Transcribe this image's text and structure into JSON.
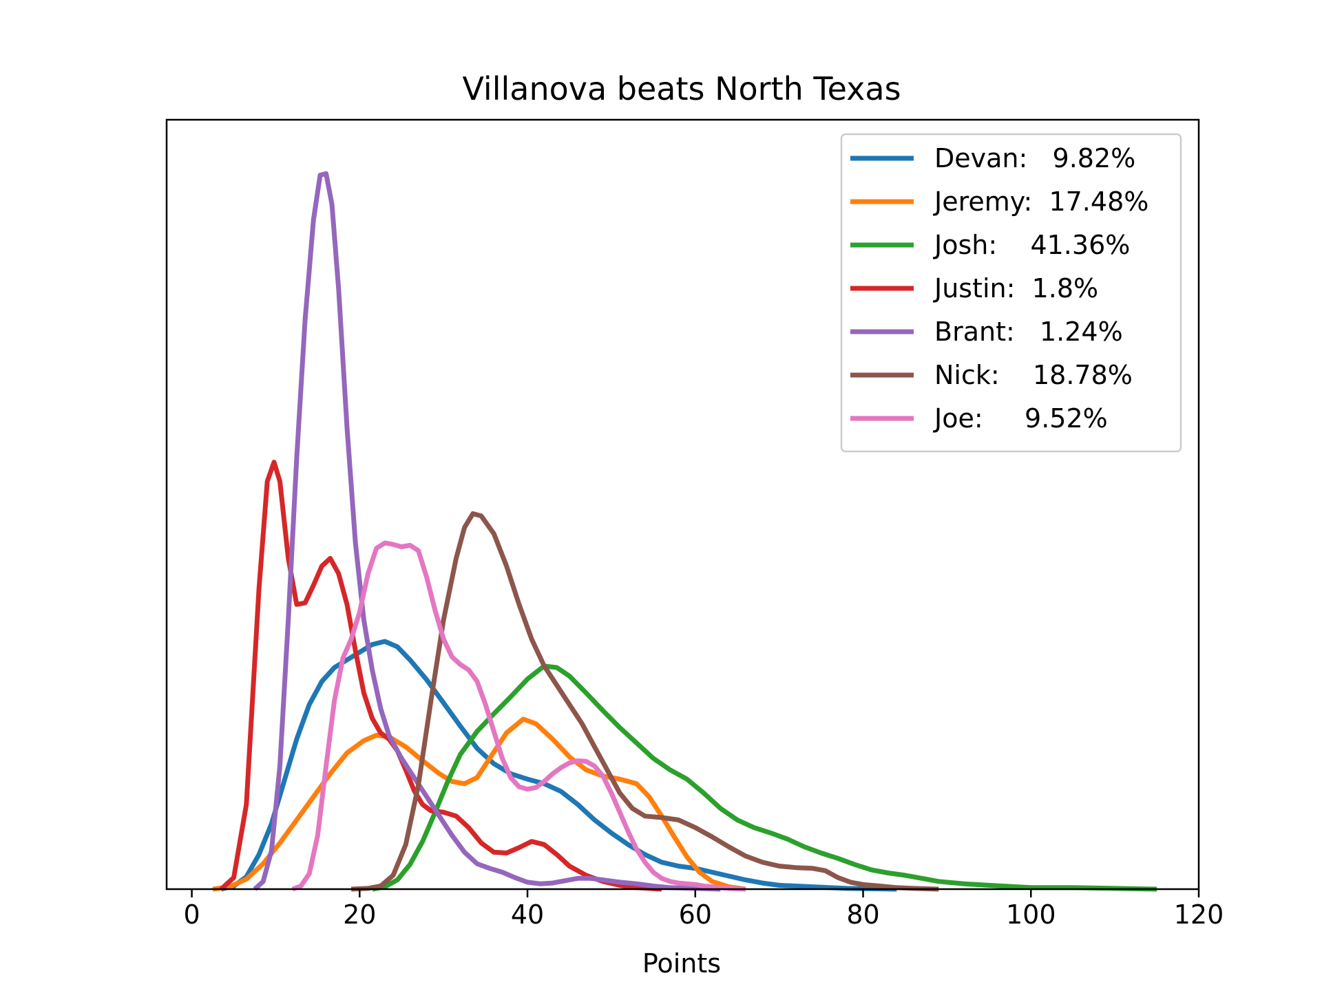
{
  "chart_data": {
    "type": "line",
    "title": "Villanova beats North Texas",
    "xlabel": "Points",
    "ylabel": "",
    "xlim": [
      -3,
      120
    ],
    "ylim": [
      0,
      1.0
    ],
    "xticks": [
      0,
      20,
      40,
      60,
      80,
      100,
      120
    ],
    "xtick_labels": [
      "0",
      "20",
      "40",
      "60",
      "80",
      "100",
      "120"
    ],
    "grid": false,
    "legend_position": "top-right",
    "series": [
      {
        "name": "Devan:   9.82%",
        "color": "#1f77b4",
        "points": [
          [
            3.5,
            0
          ],
          [
            5,
            0.004
          ],
          [
            6.5,
            0.016
          ],
          [
            8,
            0.045
          ],
          [
            9.5,
            0.085
          ],
          [
            11,
            0.14
          ],
          [
            12.5,
            0.195
          ],
          [
            14,
            0.24
          ],
          [
            15.5,
            0.27
          ],
          [
            17,
            0.288
          ],
          [
            18.5,
            0.298
          ],
          [
            20,
            0.308
          ],
          [
            21.5,
            0.318
          ],
          [
            23,
            0.322
          ],
          [
            24.5,
            0.315
          ],
          [
            26,
            0.298
          ],
          [
            28,
            0.272
          ],
          [
            30,
            0.242
          ],
          [
            32,
            0.212
          ],
          [
            34,
            0.183
          ],
          [
            36,
            0.163
          ],
          [
            38,
            0.15
          ],
          [
            40,
            0.143
          ],
          [
            42,
            0.137
          ],
          [
            44,
            0.127
          ],
          [
            46,
            0.11
          ],
          [
            48,
            0.09
          ],
          [
            50,
            0.073
          ],
          [
            52,
            0.058
          ],
          [
            54,
            0.045
          ],
          [
            56,
            0.035
          ],
          [
            58,
            0.03
          ],
          [
            60,
            0.027
          ],
          [
            62,
            0.022
          ],
          [
            64,
            0.017
          ],
          [
            66,
            0.012
          ],
          [
            68,
            0.008
          ],
          [
            70,
            0.005
          ],
          [
            74,
            0.003
          ],
          [
            78,
            0.001
          ],
          [
            84,
            0
          ]
        ]
      },
      {
        "name": "Jeremy:  17.48%",
        "color": "#ff7f0e",
        "points": [
          [
            2.5,
            0
          ],
          [
            4.5,
            0.003
          ],
          [
            6.5,
            0.013
          ],
          [
            8.5,
            0.033
          ],
          [
            10.5,
            0.06
          ],
          [
            12.5,
            0.09
          ],
          [
            14.5,
            0.12
          ],
          [
            16.5,
            0.15
          ],
          [
            18.5,
            0.177
          ],
          [
            20.5,
            0.193
          ],
          [
            22,
            0.2
          ],
          [
            23.5,
            0.198
          ],
          [
            25.5,
            0.185
          ],
          [
            27.5,
            0.167
          ],
          [
            29.5,
            0.15
          ],
          [
            31,
            0.14
          ],
          [
            32.5,
            0.137
          ],
          [
            34,
            0.145
          ],
          [
            35.5,
            0.17
          ],
          [
            37.5,
            0.203
          ],
          [
            39.5,
            0.221
          ],
          [
            41,
            0.215
          ],
          [
            43,
            0.195
          ],
          [
            45,
            0.172
          ],
          [
            47,
            0.155
          ],
          [
            49,
            0.147
          ],
          [
            51,
            0.143
          ],
          [
            53,
            0.137
          ],
          [
            54.5,
            0.12
          ],
          [
            56,
            0.095
          ],
          [
            57.5,
            0.068
          ],
          [
            59,
            0.042
          ],
          [
            60.5,
            0.022
          ],
          [
            62,
            0.01
          ],
          [
            64,
            0.003
          ],
          [
            66,
            0
          ]
        ]
      },
      {
        "name": "Josh:    41.36%",
        "color": "#2ca02c",
        "points": [
          [
            21.5,
            0
          ],
          [
            23,
            0.003
          ],
          [
            24.5,
            0.012
          ],
          [
            26,
            0.032
          ],
          [
            27.5,
            0.062
          ],
          [
            29,
            0.1
          ],
          [
            30.5,
            0.14
          ],
          [
            32,
            0.175
          ],
          [
            34,
            0.205
          ],
          [
            36,
            0.228
          ],
          [
            38,
            0.25
          ],
          [
            40,
            0.273
          ],
          [
            42,
            0.29
          ],
          [
            43.5,
            0.288
          ],
          [
            45,
            0.277
          ],
          [
            47,
            0.255
          ],
          [
            49,
            0.232
          ],
          [
            51,
            0.21
          ],
          [
            53,
            0.19
          ],
          [
            55,
            0.17
          ],
          [
            57,
            0.155
          ],
          [
            59,
            0.143
          ],
          [
            61,
            0.125
          ],
          [
            63,
            0.105
          ],
          [
            65,
            0.09
          ],
          [
            67,
            0.08
          ],
          [
            69,
            0.073
          ],
          [
            71,
            0.065
          ],
          [
            73,
            0.055
          ],
          [
            75,
            0.047
          ],
          [
            77,
            0.04
          ],
          [
            79,
            0.032
          ],
          [
            81,
            0.025
          ],
          [
            83,
            0.021
          ],
          [
            85,
            0.018
          ],
          [
            87,
            0.014
          ],
          [
            89,
            0.01
          ],
          [
            92,
            0.007
          ],
          [
            95,
            0.005
          ],
          [
            100,
            0.002
          ],
          [
            105,
            0.002
          ],
          [
            110,
            0.001
          ],
          [
            115,
            0
          ]
        ]
      },
      {
        "name": "Justin:  1.8%",
        "color": "#d62728",
        "points": [
          [
            3.5,
            0
          ],
          [
            5,
            0.015
          ],
          [
            6.5,
            0.11
          ],
          [
            8,
            0.39
          ],
          [
            9,
            0.53
          ],
          [
            9.8,
            0.555
          ],
          [
            10.5,
            0.53
          ],
          [
            11.5,
            0.43
          ],
          [
            12.5,
            0.37
          ],
          [
            13.5,
            0.372
          ],
          [
            14.5,
            0.395
          ],
          [
            15.5,
            0.42
          ],
          [
            16.5,
            0.43
          ],
          [
            17.5,
            0.41
          ],
          [
            18.5,
            0.37
          ],
          [
            19.5,
            0.31
          ],
          [
            20.5,
            0.255
          ],
          [
            21.5,
            0.222
          ],
          [
            22.5,
            0.203
          ],
          [
            23.5,
            0.195
          ],
          [
            24.5,
            0.18
          ],
          [
            25.5,
            0.155
          ],
          [
            26.5,
            0.128
          ],
          [
            27.5,
            0.11
          ],
          [
            28.5,
            0.102
          ],
          [
            30,
            0.1
          ],
          [
            31.5,
            0.095
          ],
          [
            33,
            0.08
          ],
          [
            34.5,
            0.06
          ],
          [
            36,
            0.048
          ],
          [
            37.5,
            0.047
          ],
          [
            39,
            0.054
          ],
          [
            40.5,
            0.062
          ],
          [
            42,
            0.058
          ],
          [
            43.5,
            0.045
          ],
          [
            45,
            0.03
          ],
          [
            47,
            0.018
          ],
          [
            49,
            0.01
          ],
          [
            51,
            0.005
          ],
          [
            53,
            0.002
          ],
          [
            56,
            0
          ]
        ]
      },
      {
        "name": "Brant:   1.24%",
        "color": "#9467bd",
        "points": [
          [
            7.5,
            0
          ],
          [
            8.5,
            0.01
          ],
          [
            9.5,
            0.05
          ],
          [
            10.5,
            0.16
          ],
          [
            11.5,
            0.35
          ],
          [
            12.5,
            0.56
          ],
          [
            13.5,
            0.74
          ],
          [
            14.5,
            0.87
          ],
          [
            15.3,
            0.928
          ],
          [
            16,
            0.93
          ],
          [
            16.7,
            0.89
          ],
          [
            17.5,
            0.78
          ],
          [
            18.5,
            0.6
          ],
          [
            19.5,
            0.45
          ],
          [
            20.5,
            0.35
          ],
          [
            21.5,
            0.285
          ],
          [
            22.5,
            0.235
          ],
          [
            23.5,
            0.2
          ],
          [
            25,
            0.17
          ],
          [
            26.5,
            0.145
          ],
          [
            28,
            0.12
          ],
          [
            29.5,
            0.095
          ],
          [
            31,
            0.07
          ],
          [
            32.5,
            0.048
          ],
          [
            34,
            0.033
          ],
          [
            35.5,
            0.027
          ],
          [
            37,
            0.022
          ],
          [
            38.5,
            0.015
          ],
          [
            40,
            0.009
          ],
          [
            41.5,
            0.007
          ],
          [
            43,
            0.008
          ],
          [
            44.5,
            0.011
          ],
          [
            46,
            0.014
          ],
          [
            47.5,
            0.014
          ],
          [
            49,
            0.012
          ],
          [
            51,
            0.009
          ],
          [
            53,
            0.007
          ],
          [
            55,
            0.004
          ],
          [
            57,
            0.002
          ],
          [
            60,
            0.001
          ],
          [
            63,
            0
          ]
        ]
      },
      {
        "name": "Nick:    18.78%",
        "color": "#8c564b",
        "points": [
          [
            19,
            0
          ],
          [
            21,
            0.001
          ],
          [
            22.5,
            0.004
          ],
          [
            24,
            0.018
          ],
          [
            25.5,
            0.058
          ],
          [
            27,
            0.135
          ],
          [
            28.5,
            0.245
          ],
          [
            30,
            0.35
          ],
          [
            31.5,
            0.43
          ],
          [
            32.5,
            0.47
          ],
          [
            33.5,
            0.488
          ],
          [
            34.5,
            0.485
          ],
          [
            36,
            0.462
          ],
          [
            37.5,
            0.42
          ],
          [
            39,
            0.37
          ],
          [
            40.5,
            0.325
          ],
          [
            42,
            0.29
          ],
          [
            43.5,
            0.265
          ],
          [
            45,
            0.24
          ],
          [
            46.5,
            0.215
          ],
          [
            48,
            0.185
          ],
          [
            49.5,
            0.155
          ],
          [
            51,
            0.125
          ],
          [
            52.5,
            0.105
          ],
          [
            54,
            0.095
          ],
          [
            56,
            0.093
          ],
          [
            58,
            0.09
          ],
          [
            60,
            0.08
          ],
          [
            62,
            0.068
          ],
          [
            64,
            0.055
          ],
          [
            66,
            0.043
          ],
          [
            68,
            0.035
          ],
          [
            70,
            0.03
          ],
          [
            72,
            0.028
          ],
          [
            74,
            0.027
          ],
          [
            75.5,
            0.024
          ],
          [
            77,
            0.015
          ],
          [
            78.5,
            0.009
          ],
          [
            80,
            0.006
          ],
          [
            82,
            0.004
          ],
          [
            84,
            0.002
          ],
          [
            86,
            0.001
          ],
          [
            89,
            0
          ]
        ]
      },
      {
        "name": "Joe:     9.52%",
        "color": "#e377c2",
        "points": [
          [
            12,
            0
          ],
          [
            13,
            0.004
          ],
          [
            14,
            0.02
          ],
          [
            15,
            0.07
          ],
          [
            16,
            0.16
          ],
          [
            17,
            0.245
          ],
          [
            18,
            0.3
          ],
          [
            19,
            0.325
          ],
          [
            20,
            0.36
          ],
          [
            21,
            0.41
          ],
          [
            22,
            0.443
          ],
          [
            23,
            0.45
          ],
          [
            24,
            0.448
          ],
          [
            25,
            0.445
          ],
          [
            26,
            0.447
          ],
          [
            27,
            0.44
          ],
          [
            28,
            0.405
          ],
          [
            29,
            0.362
          ],
          [
            30,
            0.325
          ],
          [
            31,
            0.302
          ],
          [
            32,
            0.292
          ],
          [
            33,
            0.285
          ],
          [
            34,
            0.27
          ],
          [
            35,
            0.24
          ],
          [
            36,
            0.205
          ],
          [
            37,
            0.17
          ],
          [
            38,
            0.145
          ],
          [
            39,
            0.133
          ],
          [
            40,
            0.13
          ],
          [
            41,
            0.132
          ],
          [
            42,
            0.14
          ],
          [
            43,
            0.15
          ],
          [
            44,
            0.158
          ],
          [
            45,
            0.164
          ],
          [
            46,
            0.167
          ],
          [
            47,
            0.166
          ],
          [
            48,
            0.16
          ],
          [
            49,
            0.147
          ],
          [
            50,
            0.125
          ],
          [
            51,
            0.1
          ],
          [
            52,
            0.075
          ],
          [
            53,
            0.052
          ],
          [
            54,
            0.035
          ],
          [
            55,
            0.022
          ],
          [
            56,
            0.014
          ],
          [
            57,
            0.01
          ],
          [
            58,
            0.008
          ],
          [
            59,
            0.007
          ],
          [
            60,
            0.006
          ],
          [
            61,
            0.004
          ],
          [
            62,
            0.003
          ],
          [
            64,
            0.001
          ],
          [
            66,
            0
          ]
        ]
      }
    ]
  }
}
